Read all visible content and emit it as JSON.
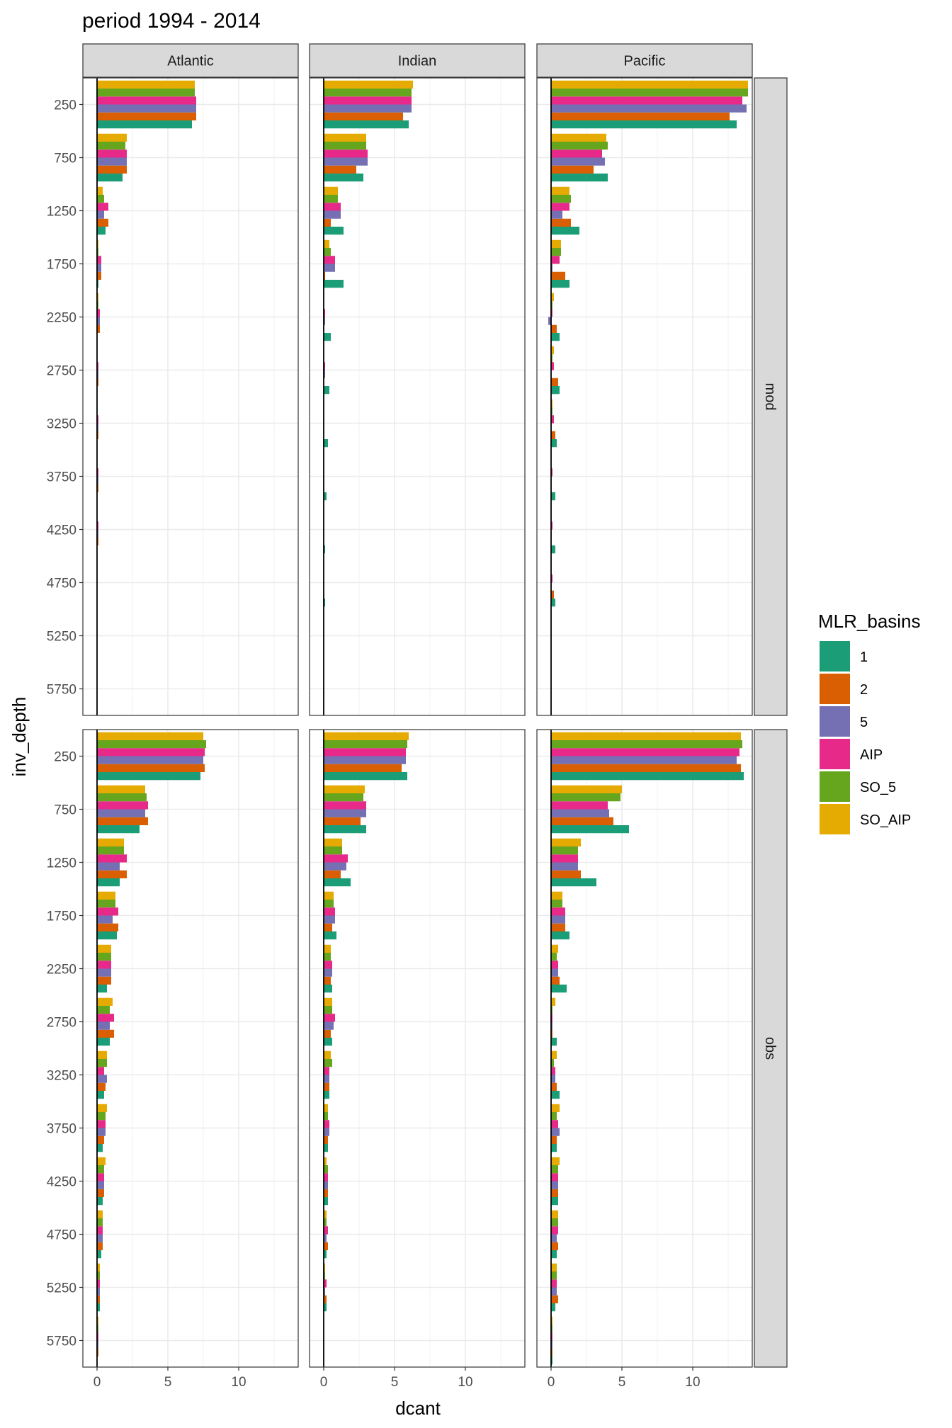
{
  "chart_data": {
    "type": "bar",
    "orientation": "horizontal",
    "title": "period 1994 - 2014",
    "xlabel": "dcant",
    "ylabel": "inv_depth",
    "xlim": [
      -1,
      14.2
    ],
    "x_ticks": [
      0,
      5,
      10
    ],
    "y_ticks": [
      250,
      750,
      1250,
      1750,
      2250,
      2750,
      3250,
      3750,
      4250,
      4750,
      5250,
      5750
    ],
    "depths": [
      250,
      750,
      1250,
      1750,
      2250,
      2750,
      3250,
      3750,
      4250,
      4750,
      5250,
      5750
    ],
    "facet_columns": [
      "Atlantic",
      "Indian",
      "Pacific"
    ],
    "facet_rows": [
      "mod",
      "obs"
    ],
    "grid": true,
    "legend": {
      "title": "MLR_basins",
      "position": "right",
      "entries": [
        {
          "label": "1",
          "color": "#1B9E77"
        },
        {
          "label": "2",
          "color": "#D95F02"
        },
        {
          "label": "5",
          "color": "#7570B3"
        },
        {
          "label": "AIP",
          "color": "#E7298A"
        },
        {
          "label": "SO_5",
          "color": "#66A61E"
        },
        {
          "label": "SO_AIP",
          "color": "#E6AB02"
        }
      ]
    },
    "series_order": [
      "1",
      "2",
      "5",
      "AIP",
      "SO_5",
      "SO_AIP"
    ],
    "panels": [
      {
        "row": "mod",
        "col": "Atlantic",
        "values": [
          [
            6.7,
            7.0,
            7.0,
            7.0,
            6.9,
            6.9
          ],
          [
            1.8,
            2.1,
            2.1,
            2.1,
            2.0,
            2.1
          ],
          [
            0.6,
            0.8,
            0.5,
            0.8,
            0.5,
            0.4
          ],
          [
            0.1,
            0.3,
            0.3,
            0.3,
            0.1,
            0.1
          ],
          [
            0.0,
            0.2,
            0.2,
            0.2,
            0.1,
            0.1
          ],
          [
            0.0,
            0.1,
            0.1,
            0.1,
            0.0,
            0.0
          ],
          [
            0.0,
            0.1,
            0.1,
            0.1,
            0.0,
            0.0
          ],
          [
            0.0,
            0.1,
            0.1,
            0.1,
            0.0,
            0.0
          ],
          [
            0.0,
            0.1,
            0.1,
            0.1,
            0.0,
            0.0
          ],
          [
            0.0,
            0.0,
            0.0,
            0.0,
            0.0,
            0.0
          ],
          [
            0.0,
            0.0,
            0.0,
            0.0,
            0.0,
            0.0
          ],
          [
            0.0,
            0.0,
            0.0,
            0.0,
            0.0,
            0.0
          ]
        ]
      },
      {
        "row": "mod",
        "col": "Indian",
        "values": [
          [
            6.0,
            5.6,
            6.2,
            6.2,
            6.2,
            6.3
          ],
          [
            2.8,
            2.3,
            3.1,
            3.1,
            3.0,
            3.0
          ],
          [
            1.4,
            0.5,
            1.2,
            1.2,
            1.0,
            1.0
          ],
          [
            1.4,
            0.1,
            0.8,
            0.8,
            0.5,
            0.4
          ],
          [
            0.5,
            0.0,
            0.1,
            0.1,
            0.0,
            0.0
          ],
          [
            0.4,
            0.0,
            0.1,
            0.1,
            0.0,
            0.0
          ],
          [
            0.3,
            0.0,
            0.0,
            0.0,
            0.0,
            0.0
          ],
          [
            0.2,
            0.0,
            0.0,
            0.0,
            0.0,
            0.0
          ],
          [
            0.1,
            0.0,
            0.0,
            0.0,
            0.0,
            0.0
          ],
          [
            0.1,
            0.0,
            0.0,
            0.0,
            0.0,
            0.0
          ],
          [
            0.0,
            0.0,
            0.0,
            0.0,
            0.0,
            0.0
          ],
          [
            0.0,
            0.0,
            0.0,
            0.0,
            0.0,
            0.0
          ]
        ]
      },
      {
        "row": "mod",
        "col": "Pacific",
        "values": [
          [
            13.1,
            12.6,
            13.8,
            13.5,
            13.9,
            13.9
          ],
          [
            4.0,
            3.0,
            3.8,
            3.6,
            4.0,
            3.9
          ],
          [
            2.0,
            1.4,
            0.8,
            1.3,
            1.4,
            1.3
          ],
          [
            1.3,
            1.0,
            0.1,
            0.6,
            0.7,
            0.7
          ],
          [
            0.6,
            0.4,
            -0.2,
            0.1,
            0.1,
            0.2
          ],
          [
            0.6,
            0.5,
            0.0,
            0.2,
            0.1,
            0.2
          ],
          [
            0.4,
            0.3,
            0.0,
            0.2,
            0.1,
            0.1
          ],
          [
            0.3,
            0.0,
            0.0,
            0.1,
            0.0,
            0.0
          ],
          [
            0.3,
            0.0,
            0.0,
            0.1,
            0.0,
            0.0
          ],
          [
            0.3,
            0.2,
            0.0,
            0.1,
            0.0,
            0.0
          ],
          [
            0.0,
            0.0,
            0.0,
            0.0,
            0.0,
            0.0
          ],
          [
            0.0,
            0.0,
            0.0,
            0.0,
            0.0,
            0.0
          ]
        ]
      },
      {
        "row": "obs",
        "col": "Atlantic",
        "values": [
          [
            7.3,
            7.6,
            7.5,
            7.6,
            7.7,
            7.5
          ],
          [
            3.0,
            3.6,
            3.4,
            3.6,
            3.5,
            3.4
          ],
          [
            1.6,
            2.1,
            1.6,
            2.1,
            1.9,
            1.9
          ],
          [
            1.4,
            1.5,
            1.1,
            1.5,
            1.3,
            1.3
          ],
          [
            0.7,
            1.0,
            1.0,
            1.0,
            1.0,
            1.0
          ],
          [
            0.9,
            1.2,
            0.9,
            1.2,
            0.9,
            1.1
          ],
          [
            0.5,
            0.6,
            0.7,
            0.5,
            0.7,
            0.7
          ],
          [
            0.4,
            0.5,
            0.6,
            0.6,
            0.6,
            0.7
          ],
          [
            0.4,
            0.5,
            0.5,
            0.5,
            0.5,
            0.6
          ],
          [
            0.3,
            0.4,
            0.4,
            0.4,
            0.4,
            0.4
          ],
          [
            0.2,
            0.2,
            0.2,
            0.2,
            0.2,
            0.2
          ],
          [
            0.0,
            0.1,
            0.1,
            0.1,
            0.1,
            0.1
          ]
        ]
      },
      {
        "row": "obs",
        "col": "Indian",
        "values": [
          [
            5.9,
            5.5,
            5.8,
            5.8,
            5.9,
            6.0
          ],
          [
            3.0,
            2.6,
            3.0,
            3.0,
            2.8,
            2.9
          ],
          [
            1.9,
            1.2,
            1.6,
            1.7,
            1.3,
            1.3
          ],
          [
            0.9,
            0.6,
            0.8,
            0.8,
            0.7,
            0.7
          ],
          [
            0.6,
            0.5,
            0.6,
            0.6,
            0.5,
            0.5
          ],
          [
            0.6,
            0.5,
            0.7,
            0.8,
            0.6,
            0.6
          ],
          [
            0.4,
            0.4,
            0.4,
            0.4,
            0.6,
            0.5
          ],
          [
            0.3,
            0.3,
            0.4,
            0.4,
            0.3,
            0.3
          ],
          [
            0.3,
            0.3,
            0.3,
            0.3,
            0.3,
            0.2
          ],
          [
            0.2,
            0.3,
            0.2,
            0.3,
            0.2,
            0.2
          ],
          [
            0.2,
            0.2,
            0.1,
            0.2,
            0.1,
            0.1
          ],
          [
            0.0,
            0.0,
            0.0,
            0.0,
            0.0,
            0.0
          ]
        ]
      },
      {
        "row": "obs",
        "col": "Pacific",
        "values": [
          [
            13.6,
            13.4,
            13.1,
            13.3,
            13.5,
            13.4
          ],
          [
            5.5,
            4.4,
            4.1,
            4.0,
            4.9,
            5.0
          ],
          [
            3.2,
            2.1,
            1.9,
            1.9,
            1.9,
            2.1
          ],
          [
            1.3,
            1.0,
            1.0,
            1.0,
            0.8,
            0.8
          ],
          [
            1.1,
            0.6,
            0.5,
            0.5,
            0.4,
            0.5
          ],
          [
            0.4,
            0.1,
            0.1,
            0.1,
            0.1,
            0.3
          ],
          [
            0.6,
            0.4,
            0.3,
            0.3,
            0.2,
            0.4
          ],
          [
            0.4,
            0.4,
            0.6,
            0.5,
            0.4,
            0.6
          ],
          [
            0.5,
            0.5,
            0.5,
            0.5,
            0.5,
            0.6
          ],
          [
            0.4,
            0.5,
            0.4,
            0.5,
            0.5,
            0.5
          ],
          [
            0.3,
            0.5,
            0.4,
            0.4,
            0.4,
            0.4
          ],
          [
            0.1,
            0.1,
            0.1,
            0.1,
            0.1,
            0.1
          ]
        ]
      }
    ]
  }
}
